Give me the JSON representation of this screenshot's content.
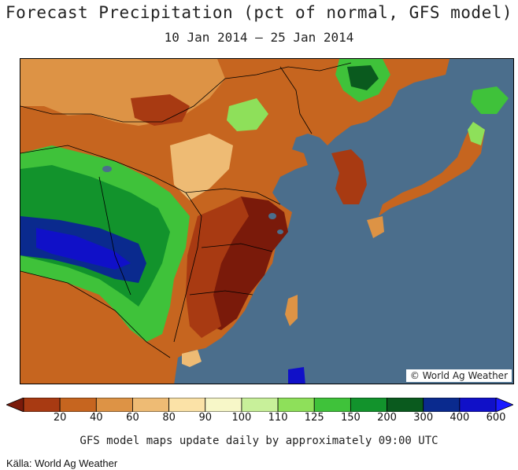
{
  "header": {
    "title": "Forecast Precipitation (pct of normal, GFS model)",
    "date_range": "10 Jan 2014 – 25 Jan 2014"
  },
  "map": {
    "copyright": "© World Ag Weather",
    "ocean_color": "#4b6e8c",
    "border_color": "#000000"
  },
  "legend": {
    "ticks": [
      "20",
      "40",
      "60",
      "80",
      "90",
      "100",
      "110",
      "125",
      "150",
      "200",
      "300",
      "400",
      "600"
    ],
    "colors": [
      "#7a1a0a",
      "#a83a12",
      "#c6651f",
      "#dd9345",
      "#eebb74",
      "#fbe2a7",
      "#f7f7c8",
      "#c8f09a",
      "#8ee05a",
      "#3fc23a",
      "#12932c",
      "#0a5a1e",
      "#0a2a8e",
      "#1010c8",
      "#1a1aff"
    ]
  },
  "footer": {
    "note": "GFS model maps update daily by approximately 09:00 UTC",
    "source": "Källa: World Ag Weather"
  }
}
